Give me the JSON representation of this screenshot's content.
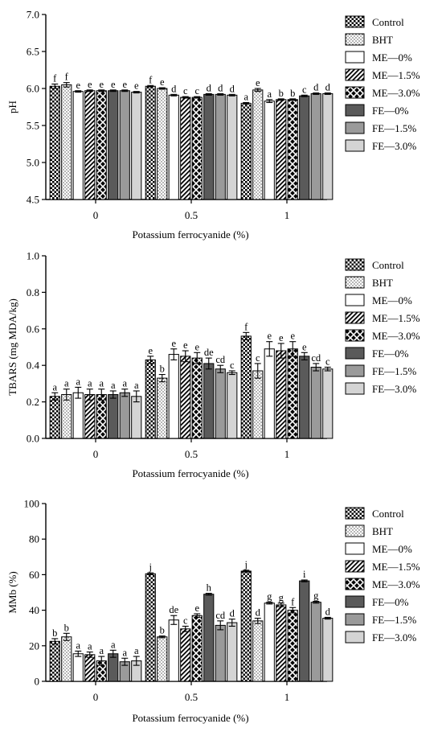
{
  "chart_data": [
    {
      "type": "bar",
      "ylabel": "pH",
      "xlabel": "Potassium ferrocyanide (%)",
      "ylim": [
        4.5,
        7.0
      ],
      "yticks": [
        "4.5",
        "5.0",
        "5.5",
        "6.0",
        "6.5",
        "7.0"
      ],
      "categories": [
        "0",
        "0.5",
        "1"
      ],
      "series": [
        {
          "name": "Control",
          "values": [
            6.03,
            6.03,
            5.8
          ],
          "errors": [
            0.03,
            0.01,
            0.01
          ],
          "letters": [
            "f",
            "f",
            "a"
          ]
        },
        {
          "name": "BHT",
          "values": [
            6.05,
            6.0,
            5.98
          ],
          "errors": [
            0.03,
            0.01,
            0.02
          ],
          "letters": [
            "f",
            "e",
            "e"
          ]
        },
        {
          "name": "ME—0%",
          "values": [
            5.96,
            5.91,
            5.83
          ],
          "errors": [
            0.01,
            0.01,
            0.02
          ],
          "letters": [
            "e",
            "d",
            "a"
          ]
        },
        {
          "name": "ME—1.5%",
          "values": [
            5.97,
            5.88,
            5.85
          ],
          "errors": [
            0.01,
            0.01,
            0.01
          ],
          "letters": [
            "e",
            "c",
            "b"
          ]
        },
        {
          "name": "ME—3.0%",
          "values": [
            5.97,
            5.88,
            5.85
          ],
          "errors": [
            0.01,
            0.01,
            0.01
          ],
          "letters": [
            "e",
            "c",
            "b"
          ]
        },
        {
          "name": "FE—0%",
          "values": [
            5.97,
            5.92,
            5.9
          ],
          "errors": [
            0.01,
            0.01,
            0.01
          ],
          "letters": [
            "e",
            "d",
            "c"
          ]
        },
        {
          "name": "FE—1.5%",
          "values": [
            5.97,
            5.92,
            5.93
          ],
          "errors": [
            0.01,
            0.01,
            0.01
          ],
          "letters": [
            "e",
            "d",
            "d"
          ]
        },
        {
          "name": "FE—3.0%",
          "values": [
            5.95,
            5.91,
            5.93
          ],
          "errors": [
            0.01,
            0.01,
            0.01
          ],
          "letters": [
            "e",
            "d",
            "d"
          ]
        }
      ]
    },
    {
      "type": "bar",
      "ylabel": "TBARS (mg MDA/kg)",
      "xlabel": "Potassium ferrocyanide (%)",
      "ylim": [
        0.0,
        1.0
      ],
      "yticks": [
        "0.0",
        "0.2",
        "0.4",
        "0.6",
        "0.8",
        "1.0"
      ],
      "categories": [
        "0",
        "0.5",
        "1"
      ],
      "series": [
        {
          "name": "Control",
          "values": [
            0.23,
            0.43,
            0.56
          ],
          "errors": [
            0.02,
            0.02,
            0.02
          ],
          "letters": [
            "a",
            "e",
            "f"
          ]
        },
        {
          "name": "BHT",
          "values": [
            0.24,
            0.33,
            0.37
          ],
          "errors": [
            0.03,
            0.02,
            0.04
          ],
          "letters": [
            "a",
            "b",
            "c"
          ]
        },
        {
          "name": "ME—0%",
          "values": [
            0.25,
            0.46,
            0.49
          ],
          "errors": [
            0.03,
            0.03,
            0.04
          ],
          "letters": [
            "a",
            "e",
            "e"
          ]
        },
        {
          "name": "ME—1.5%",
          "values": [
            0.24,
            0.45,
            0.48
          ],
          "errors": [
            0.03,
            0.03,
            0.04
          ],
          "letters": [
            "a",
            "e",
            "e"
          ]
        },
        {
          "name": "ME—3.0%",
          "values": [
            0.24,
            0.44,
            0.49
          ],
          "errors": [
            0.03,
            0.03,
            0.04
          ],
          "letters": [
            "a",
            "e",
            "e"
          ]
        },
        {
          "name": "FE—0%",
          "values": [
            0.24,
            0.41,
            0.45
          ],
          "errors": [
            0.02,
            0.03,
            0.02
          ],
          "letters": [
            "a",
            "de",
            "e"
          ]
        },
        {
          "name": "FE—1.5%",
          "values": [
            0.25,
            0.38,
            0.39
          ],
          "errors": [
            0.02,
            0.02,
            0.02
          ],
          "letters": [
            "a",
            "cd",
            "cd"
          ]
        },
        {
          "name": "FE—3.0%",
          "values": [
            0.23,
            0.36,
            0.38
          ],
          "errors": [
            0.03,
            0.01,
            0.01
          ],
          "letters": [
            "a",
            "c",
            "c"
          ]
        }
      ]
    },
    {
      "type": "bar",
      "ylabel": "MMb (%)",
      "xlabel": "Potassium ferrocyanide (%)",
      "ylim": [
        0,
        100
      ],
      "yticks": [
        "0",
        "20",
        "40",
        "60",
        "80",
        "100"
      ],
      "categories": [
        "0",
        "0.5",
        "1"
      ],
      "series": [
        {
          "name": "Control",
          "values": [
            22.5,
            60.5,
            62.0
          ],
          "errors": [
            1.5,
            0.5,
            0.5
          ],
          "letters": [
            "b",
            "j",
            "j"
          ]
        },
        {
          "name": "BHT",
          "values": [
            25.0,
            25.0,
            34.0
          ],
          "errors": [
            2.0,
            0.5,
            1.5
          ],
          "letters": [
            "b",
            "b",
            "d"
          ]
        },
        {
          "name": "ME—0%",
          "values": [
            15.5,
            34.5,
            44.0
          ],
          "errors": [
            1.5,
            2.5,
            0.5
          ],
          "letters": [
            "a",
            "de",
            "g"
          ]
        },
        {
          "name": "ME—1.5%",
          "values": [
            15.0,
            29.5,
            43.0
          ],
          "errors": [
            1.5,
            1.5,
            1.0
          ],
          "letters": [
            "a",
            "c",
            "g"
          ]
        },
        {
          "name": "ME—3.0%",
          "values": [
            11.5,
            37.0,
            40.0
          ],
          "errors": [
            2.5,
            1.0,
            1.5
          ],
          "letters": [
            "a",
            "e",
            "f"
          ]
        },
        {
          "name": "FE—0%",
          "values": [
            15.5,
            49.0,
            56.5
          ],
          "errors": [
            2.0,
            0.5,
            0.5
          ],
          "letters": [
            "a",
            "h",
            "i"
          ]
        },
        {
          "name": "FE—1.5%",
          "values": [
            11.0,
            31.5,
            44.5
          ],
          "errors": [
            2.0,
            2.5,
            0.5
          ],
          "letters": [
            "a",
            "cd",
            "g"
          ]
        },
        {
          "name": "FE—3.0%",
          "values": [
            11.5,
            33.0,
            35.5
          ],
          "errors": [
            2.5,
            2.0,
            0.5
          ],
          "letters": [
            "a",
            "d",
            "d"
          ]
        }
      ]
    }
  ],
  "colors": {
    "axis": "#000000",
    "bar_outline": "#000000",
    "FE_0": "#5a5a5a",
    "FE_15": "#9a9a9a",
    "FE_30": "#d4d4d4",
    "background": "#ffffff"
  }
}
